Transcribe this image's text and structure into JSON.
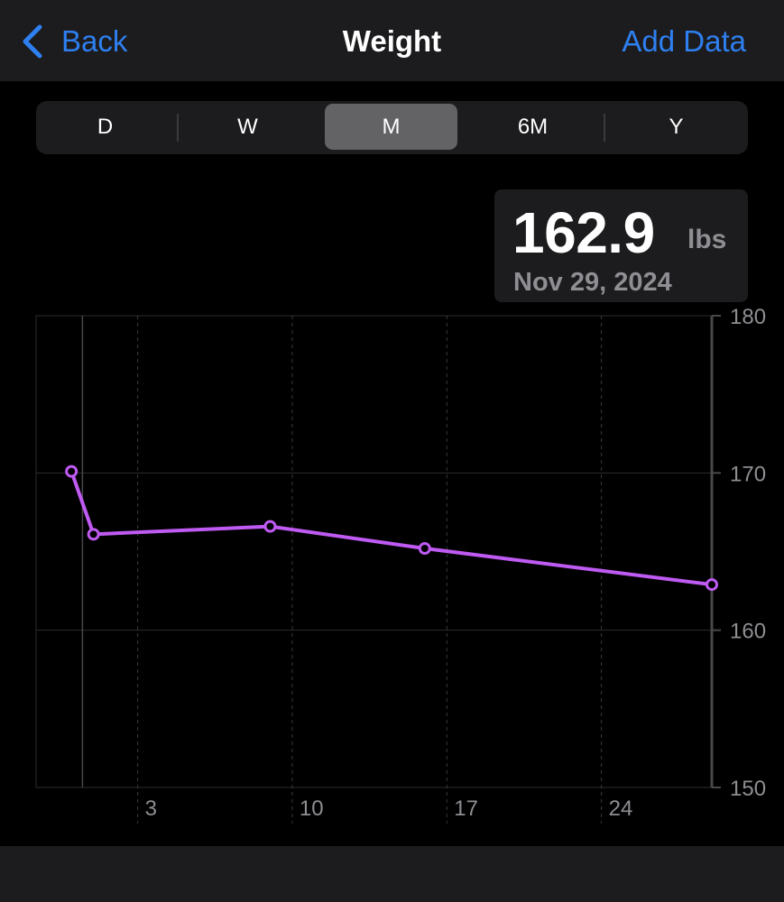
{
  "nav": {
    "back_label": "Back",
    "title": "Weight",
    "add_label": "Add Data"
  },
  "segments": [
    {
      "label": "D",
      "selected": false
    },
    {
      "label": "W",
      "selected": false
    },
    {
      "label": "M",
      "selected": true
    },
    {
      "label": "6M",
      "selected": false
    },
    {
      "label": "Y",
      "selected": false
    }
  ],
  "callout": {
    "value": "162.9",
    "unit": "lbs",
    "date": "Nov 29, 2024"
  },
  "colors": {
    "accent": "#2e7ff0",
    "series": "#bf5af2",
    "nav_background": "#1c1c1e",
    "selected_segment": "#636366"
  },
  "icons": {
    "back": "chevron-left-icon"
  },
  "chart_data": {
    "type": "line",
    "title": "",
    "xlabel": "",
    "ylabel": "",
    "xlim": [
      -1.6,
      29
    ],
    "ylim": [
      150,
      180
    ],
    "y_axis_side": "right",
    "x_ticks": [
      3,
      10,
      17,
      24
    ],
    "x_tick_labels": [
      "3",
      "10",
      "17",
      "24"
    ],
    "y_ticks": [
      150,
      160,
      170,
      180
    ],
    "y_tick_labels": [
      "150",
      "160",
      "170",
      "180"
    ],
    "selected_x": 0.5,
    "grid": true,
    "series": [
      {
        "x": [
          0,
          1,
          9,
          16,
          29
        ],
        "values": [
          170.1,
          166.1,
          166.6,
          165.2,
          162.9
        ]
      }
    ]
  }
}
